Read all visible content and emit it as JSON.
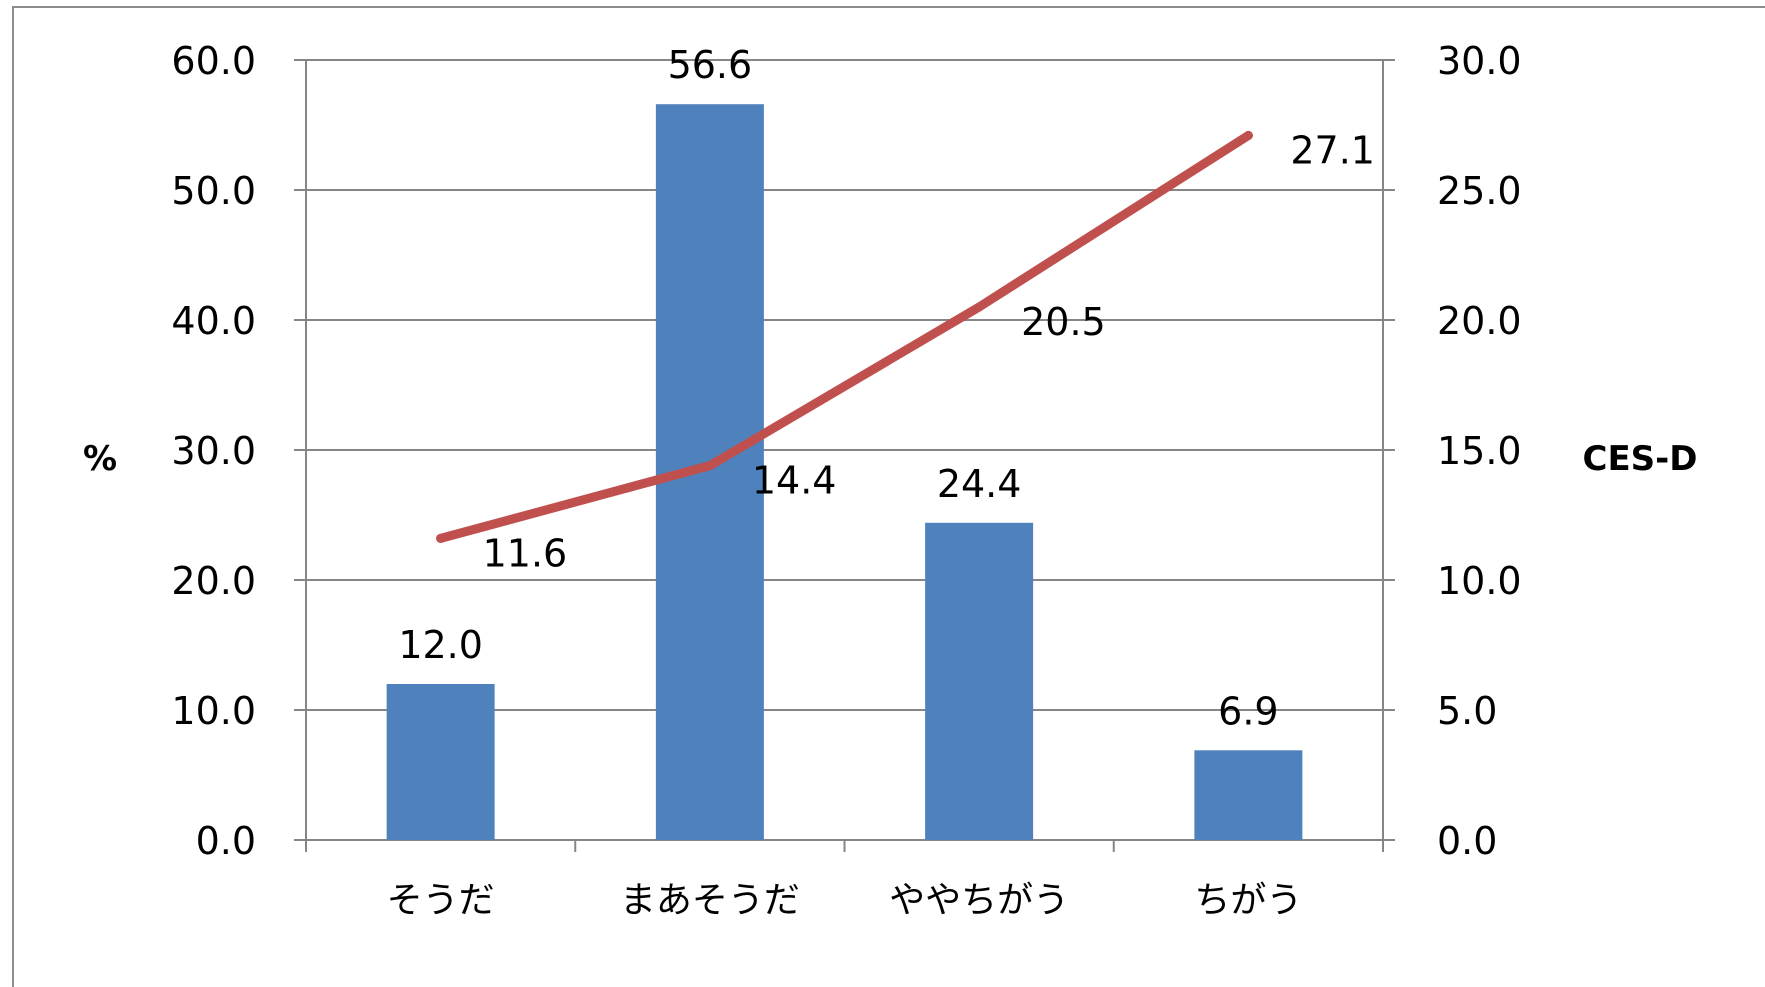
{
  "chart_data": {
    "type": "bar",
    "categories": [
      "そうだ",
      "まあそうだ",
      "ややちがう",
      "ちがう"
    ],
    "series": [
      {
        "type": "bar",
        "axis": "left",
        "values": [
          12.0,
          56.6,
          24.4,
          6.9
        ],
        "labels": [
          "12.0",
          "56.6",
          "24.4",
          "6.9"
        ]
      },
      {
        "type": "line",
        "axis": "right",
        "values": [
          11.6,
          14.4,
          20.5,
          27.1
        ],
        "labels": [
          "11.6",
          "14.4",
          "20.5",
          "27.1"
        ]
      }
    ],
    "ylabel": "%",
    "y2label": "CES-D",
    "ylim": [
      0,
      60
    ],
    "y2lim": [
      0,
      30
    ],
    "yticks": [
      "0.0",
      "10.0",
      "20.0",
      "30.0",
      "40.0",
      "50.0",
      "60.0"
    ],
    "y2ticks": [
      "0.0",
      "5.0",
      "10.0",
      "15.0",
      "20.0",
      "25.0",
      "30.0"
    ],
    "grid": true,
    "colors": {
      "bar": "#4f81bd",
      "line": "#c0504d",
      "grid": "#868686",
      "axis": "#868686"
    }
  }
}
